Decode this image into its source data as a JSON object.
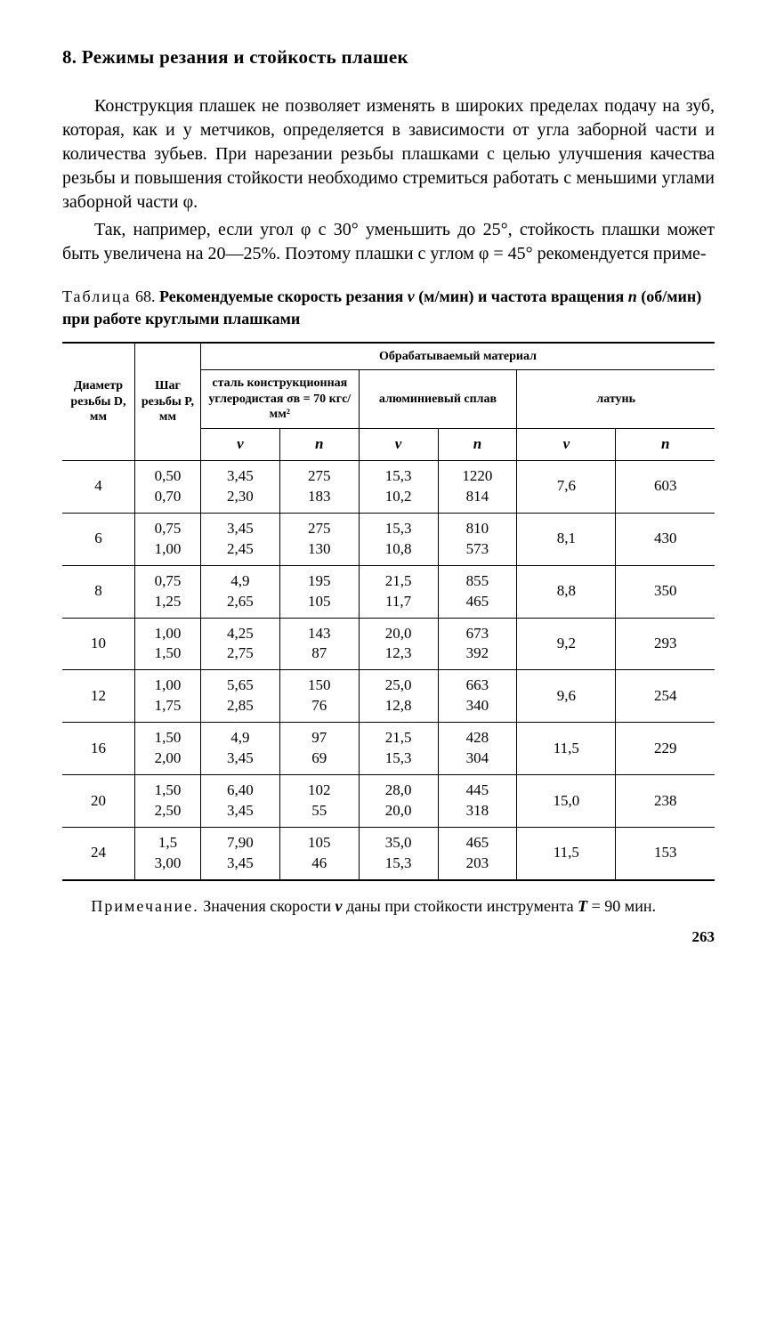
{
  "section": {
    "number": "8.",
    "title": "Режимы резания и стойкость плашек"
  },
  "paragraphs": {
    "p1": "Конструкция плашек не позволяет изменять в широких пределах подачу на зуб, которая, как и у метчиков, определяется в зависимости от угла заборной части и количества зубьев. При нарезании резьбы плашками с целью улучшения качества резьбы и повышения стойкости необходимо стремиться работать с меньшими углами заборной части φ.",
    "p2": "Так, например, если угол φ с 30° уменьшить до 25°, стойкость плашки может быть увеличена на 20—25%. Поэтому плашки с углом φ = 45° рекомендуется приме-"
  },
  "caption": {
    "prefix": "Таблица",
    "number": "68.",
    "rest1": "Рекомендуемые скорость резания ",
    "v_sym": "v",
    "rest2": " (м/мин) и частота вращения ",
    "n_sym": "n",
    "rest3": " (об/мин) при работе круглыми плашками"
  },
  "headers": {
    "diam": "Диаметр резьбы D, мм",
    "pitch": "Шаг резьбы P, мм",
    "material": "Обрабатываемый материал",
    "steel": "сталь конструкционная углеродистая σв = 70 кгс/мм²",
    "alu": "алюминиевый сплав",
    "brass": "латунь",
    "v": "v",
    "n": "n"
  },
  "rows": [
    {
      "D": "4",
      "P": [
        "0,50",
        "0,70"
      ],
      "sv": [
        "3,45",
        "2,30"
      ],
      "sn": [
        "275",
        "183"
      ],
      "av": [
        "15,3",
        "10,2"
      ],
      "an": [
        "1220",
        "814"
      ],
      "bv": "7,6",
      "bn": "603"
    },
    {
      "D": "6",
      "P": [
        "0,75",
        "1,00"
      ],
      "sv": [
        "3,45",
        "2,45"
      ],
      "sn": [
        "275",
        "130"
      ],
      "av": [
        "15,3",
        "10,8"
      ],
      "an": [
        "810",
        "573"
      ],
      "bv": "8,1",
      "bn": "430"
    },
    {
      "D": "8",
      "P": [
        "0,75",
        "1,25"
      ],
      "sv": [
        "4,9",
        "2,65"
      ],
      "sn": [
        "195",
        "105"
      ],
      "av": [
        "21,5",
        "11,7"
      ],
      "an": [
        "855",
        "465"
      ],
      "bv": "8,8",
      "bn": "350"
    },
    {
      "D": "10",
      "P": [
        "1,00",
        "1,50"
      ],
      "sv": [
        "4,25",
        "2,75"
      ],
      "sn": [
        "143",
        "87"
      ],
      "av": [
        "20,0",
        "12,3"
      ],
      "an": [
        "673",
        "392"
      ],
      "bv": "9,2",
      "bn": "293"
    },
    {
      "D": "12",
      "P": [
        "1,00",
        "1,75"
      ],
      "sv": [
        "5,65",
        "2,85"
      ],
      "sn": [
        "150",
        "76"
      ],
      "av": [
        "25,0",
        "12,8"
      ],
      "an": [
        "663",
        "340"
      ],
      "bv": "9,6",
      "bn": "254"
    },
    {
      "D": "16",
      "P": [
        "1,50",
        "2,00"
      ],
      "sv": [
        "4,9",
        "3,45"
      ],
      "sn": [
        "97",
        "69"
      ],
      "av": [
        "21,5",
        "15,3"
      ],
      "an": [
        "428",
        "304"
      ],
      "bv": "11,5",
      "bn": "229"
    },
    {
      "D": "20",
      "P": [
        "1,50",
        "2,50"
      ],
      "sv": [
        "6,40",
        "3,45"
      ],
      "sn": [
        "102",
        "55"
      ],
      "av": [
        "28,0",
        "20,0"
      ],
      "an": [
        "445",
        "318"
      ],
      "bv": "15,0",
      "bn": "238"
    },
    {
      "D": "24",
      "P": [
        "1,5",
        "3,00"
      ],
      "sv": [
        "7,90",
        "3,45"
      ],
      "sn": [
        "105",
        "46"
      ],
      "av": [
        "35,0",
        "15,3"
      ],
      "an": [
        "465",
        "203"
      ],
      "bv": "11,5",
      "bn": "153"
    }
  ],
  "footnote": {
    "prefix": "Примечание.",
    "text1": " Значения скорости ",
    "v_sym": "v",
    "text2": " даны при стойкости инструмента ",
    "T_sym": "T",
    "text3": " = 90 мин."
  },
  "page_number": "263"
}
